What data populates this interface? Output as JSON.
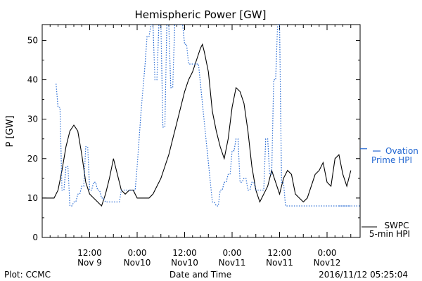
{
  "chart_data": {
    "type": "line",
    "title": "Hemispheric Power [GW]",
    "xlabel": "Date and Time",
    "ylabel": "P [GW]",
    "xlim": [
      0,
      80
    ],
    "ylim": [
      0,
      54
    ],
    "yticks": [
      0,
      10,
      20,
      30,
      40,
      50
    ],
    "xticks": [
      {
        "x": 12,
        "line1": "12:00",
        "line2": "Nov 9"
      },
      {
        "x": 24,
        "line1": "0:00",
        "line2": "Nov10"
      },
      {
        "x": 36,
        "line1": "12:00",
        "line2": "Nov10"
      },
      {
        "x": 48,
        "line1": "0:00",
        "line2": "Nov11"
      },
      {
        "x": 60,
        "line1": "12:00",
        "line2": "Nov11"
      },
      {
        "x": 72,
        "line1": "0:00",
        "line2": "Nov12"
      }
    ],
    "series": [
      {
        "name": "SWPC 5-min HPI",
        "color": "#000000",
        "style": "solid",
        "x": [
          0,
          3,
          4,
          5,
          6,
          7,
          8,
          9,
          10,
          11,
          12,
          13,
          14,
          15,
          16,
          17,
          18,
          19,
          20,
          21,
          22,
          23,
          24,
          25,
          26,
          27,
          28,
          29,
          30,
          31,
          32,
          33,
          34,
          35,
          36,
          37,
          38,
          39,
          40,
          40.5,
          41,
          42,
          43,
          44,
          45,
          46,
          47,
          48,
          49,
          50,
          51,
          52,
          53,
          54,
          55,
          56,
          57,
          58,
          59,
          60,
          61,
          62,
          63,
          64,
          65,
          66,
          67,
          68,
          69,
          70,
          71,
          72,
          73,
          74,
          75,
          76,
          77,
          78
        ],
        "values": [
          10,
          10,
          12,
          17,
          23,
          27,
          28.5,
          27,
          21,
          14,
          11,
          10,
          9,
          8,
          11,
          15,
          20,
          16,
          12,
          11,
          12,
          12,
          10,
          10,
          10,
          10,
          11,
          13,
          15,
          18,
          21,
          25,
          29,
          33,
          37,
          40,
          42,
          45,
          48,
          49,
          47,
          42,
          32,
          27,
          23,
          20,
          25,
          33,
          38,
          37,
          34,
          27,
          18,
          12,
          9,
          11,
          13,
          17,
          14,
          11,
          15,
          17,
          16,
          11,
          10,
          9,
          10,
          13,
          16,
          17,
          19,
          14,
          13,
          20,
          21,
          16,
          13,
          17
        ]
      },
      {
        "name": "Ovation Prime HPI",
        "color": "#2468d2",
        "style": "dotted",
        "x": [
          3.5,
          4,
          4.5,
          5,
          5.5,
          6,
          6.5,
          7,
          7.5,
          8,
          8.5,
          9,
          9.5,
          10,
          10.5,
          11,
          11.5,
          12,
          12.5,
          13,
          13.5,
          14,
          14.5,
          15,
          15.5,
          16,
          16.5,
          17,
          17.5,
          18,
          18.5,
          19,
          19.5,
          20,
          20.5,
          21,
          21.5,
          22,
          22.5,
          23,
          23.5,
          24,
          24.5,
          25,
          25.5,
          26,
          26.5,
          27,
          27.5,
          28,
          28.5,
          29,
          29.5,
          30,
          30.5,
          31,
          31.5,
          32,
          32.5,
          33,
          33.5,
          34,
          34.5,
          35,
          35.5,
          36,
          36.5,
          37,
          37.5,
          38,
          38.5,
          39,
          39.5,
          40,
          40.5,
          41,
          41.5,
          42,
          42.5,
          43,
          43.5,
          44,
          44.5,
          45,
          45.5,
          46,
          46.5,
          47,
          47.5,
          48,
          48.5,
          49,
          49.5,
          50,
          50.5,
          51,
          51.5,
          52,
          52.5,
          53,
          53.5,
          54,
          54.5,
          55,
          55.5,
          56,
          56.5,
          57,
          57.5,
          58,
          58.5,
          59,
          59.5,
          60,
          60.5,
          61,
          61.5,
          62,
          62.5,
          63,
          63.5,
          64,
          64.5,
          65,
          65.5,
          66,
          66.5,
          67,
          67.5,
          68,
          68.5,
          69,
          69.5,
          70,
          70.5,
          71,
          71.5,
          72,
          72.5,
          73,
          73.5,
          74,
          74.5,
          75,
          75.5,
          76,
          76.5,
          77,
          77.5,
          78
        ],
        "values": [
          39,
          33,
          33,
          12,
          12,
          18,
          18,
          8,
          8,
          9,
          9,
          11,
          11,
          13,
          13,
          23,
          23,
          12,
          12,
          14,
          14,
          12,
          12,
          10,
          10,
          9,
          9,
          9,
          9,
          9,
          9,
          9,
          9,
          12,
          12,
          12,
          12,
          12,
          12,
          12,
          12,
          18,
          25,
          32,
          38,
          44,
          51,
          51,
          54,
          54,
          40,
          40,
          54,
          54,
          28,
          28,
          54,
          54,
          38,
          38,
          54,
          54,
          54,
          54,
          54,
          49,
          49,
          44,
          44,
          44,
          44,
          44,
          44,
          39,
          34,
          29,
          24,
          19,
          14,
          9,
          9,
          8,
          8,
          12,
          12,
          14,
          14,
          16,
          16,
          22,
          22,
          25,
          25,
          14,
          14,
          15,
          15,
          12,
          12,
          14,
          14,
          12,
          12,
          12,
          12,
          12,
          25,
          25,
          16,
          16,
          40,
          40,
          54,
          54,
          14,
          14,
          8,
          8,
          8,
          8,
          8,
          8,
          8,
          8,
          8,
          8,
          8,
          8,
          8,
          8,
          8,
          8,
          8,
          8,
          8,
          8,
          8,
          8,
          8,
          8,
          8,
          8,
          8,
          8,
          8,
          8,
          8,
          8,
          8,
          8
        ]
      }
    ],
    "legend": [
      {
        "line1": "SWPC",
        "line2": "5-min HPI",
        "color": "#000000"
      },
      {
        "line1": "Ovation",
        "line2": "Prime HPI",
        "color": "#2468d2"
      }
    ],
    "right_marks": {
      "top": 22.5,
      "bottom": 8
    }
  },
  "footer": {
    "left": "Plot: CCMC",
    "right": "2016/11/12 05:25:04"
  }
}
